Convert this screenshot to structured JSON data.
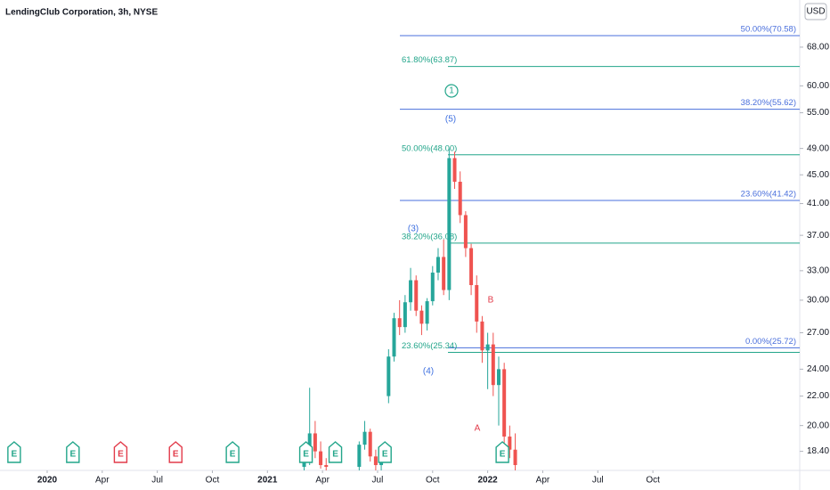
{
  "chart_data": {
    "type": "candlestick",
    "title": "LendingClub Corporation, 3h, NYSE",
    "currency": "USD",
    "log_scale": true,
    "up_color": "#26a69a",
    "down_color": "#ef5350",
    "xlim": [
      -2.57,
      41.0
    ],
    "xticks": [
      {
        "value": 0,
        "label": "2020"
      },
      {
        "value": 3,
        "label": "Apr"
      },
      {
        "value": 6,
        "label": "Jul"
      },
      {
        "value": 9,
        "label": "Oct"
      },
      {
        "value": 12,
        "label": "2021"
      },
      {
        "value": 15,
        "label": "Apr"
      },
      {
        "value": 18,
        "label": "Jul"
      },
      {
        "value": 21,
        "label": "Oct"
      },
      {
        "value": 24,
        "label": "2022"
      },
      {
        "value": 27,
        "label": "Apr"
      },
      {
        "value": 30,
        "label": "Jul"
      },
      {
        "value": 33,
        "label": "Oct"
      }
    ],
    "ylim": [
      17.3,
      79.2
    ],
    "yticks": [
      {
        "value": 18.4,
        "label": "18.40"
      },
      {
        "value": 20,
        "label": "20.00"
      },
      {
        "value": 22,
        "label": "22.00"
      },
      {
        "value": 24,
        "label": "24.00"
      },
      {
        "value": 27,
        "label": "27.00"
      },
      {
        "value": 30,
        "label": "30.00"
      },
      {
        "value": 33,
        "label": "33.00"
      },
      {
        "value": 37,
        "label": "37.00"
      },
      {
        "value": 41,
        "label": "41.00"
      },
      {
        "value": 45,
        "label": "45.00"
      },
      {
        "value": 49,
        "label": "49.00"
      },
      {
        "value": 55,
        "label": "55.00"
      },
      {
        "value": 60,
        "label": "60.00"
      },
      {
        "value": 68,
        "label": "68.00"
      }
    ],
    "candles": {
      "x": [
        14.0,
        14.3,
        14.6,
        14.9,
        15.2,
        17.0,
        17.3,
        17.6,
        17.9,
        18.2,
        18.6,
        18.9,
        19.2,
        19.5,
        19.8,
        20.1,
        20.4,
        20.7,
        21.0,
        21.3,
        21.6,
        21.9,
        22.2,
        22.5,
        22.8,
        23.1,
        23.4,
        23.7,
        24.0,
        24.3,
        24.6,
        24.9,
        25.2,
        25.5
      ],
      "open": [
        17.5,
        17.9,
        19.5,
        18.4,
        17.6,
        17.5,
        18.8,
        19.6,
        18.1,
        17.6,
        22.0,
        25.0,
        28.3,
        27.5,
        29.8,
        32.0,
        29.0,
        27.8,
        29.9,
        32.8,
        34.5,
        31.0,
        47.5,
        44.0,
        39.5,
        35.5,
        31.5,
        28.0,
        25.5,
        26.0,
        22.8,
        24.0,
        19.3,
        18.5
      ],
      "high": [
        18.2,
        22.6,
        20.3,
        19.0,
        18.0,
        19.0,
        20.3,
        19.8,
        18.5,
        18.0,
        25.6,
        28.8,
        30.0,
        30.5,
        33.3,
        32.5,
        29.5,
        30.2,
        33.5,
        35.5,
        36.5,
        49.0,
        48.5,
        45.5,
        40.0,
        36.0,
        32.5,
        28.5,
        27.0,
        27.0,
        25.0,
        24.5,
        20.0,
        19.5
      ],
      "low": [
        17.3,
        17.6,
        18.0,
        17.4,
        17.3,
        17.3,
        18.5,
        17.8,
        17.3,
        17.3,
        21.5,
        24.6,
        26.8,
        27.0,
        29.0,
        28.5,
        26.8,
        27.2,
        29.5,
        32.0,
        30.5,
        30.0,
        43.0,
        38.5,
        34.5,
        30.5,
        27.0,
        24.5,
        22.5,
        22.0,
        20.0,
        18.8,
        18.0,
        17.3
      ],
      "close": [
        17.9,
        19.5,
        18.4,
        17.6,
        17.5,
        18.8,
        19.6,
        18.1,
        17.6,
        17.8,
        25.0,
        28.3,
        27.5,
        29.8,
        32.0,
        29.0,
        27.8,
        29.9,
        32.8,
        34.5,
        31.0,
        47.5,
        44.0,
        39.5,
        35.5,
        31.5,
        28.0,
        25.5,
        26.0,
        22.8,
        24.0,
        19.3,
        18.5,
        17.6
      ]
    },
    "retracements": [
      {
        "color": "#4a6fdc",
        "levels": [
          {
            "value": 70.58,
            "label": "50.00%(70.58)"
          },
          {
            "value": 55.62,
            "label": "38.20%(55.62)"
          },
          {
            "value": 41.42,
            "label": "23.60%(41.42)"
          },
          {
            "value": 25.72,
            "label": "0.00%(25.72)"
          }
        ]
      },
      {
        "color": "#22a58a",
        "levels": [
          {
            "value": 63.87,
            "label": "61.80%(63.87)"
          },
          {
            "value": 48.0,
            "label": "50.00%(48.00)"
          },
          {
            "value": 36.08,
            "label": "38.20%(36.08)"
          },
          {
            "value": 25.34,
            "label": "23.60%(25.34)"
          }
        ]
      }
    ],
    "annotations": [
      {
        "text": "1",
        "color": "#22a58a"
      },
      {
        "text": "(5)",
        "color": "#3d6fe0"
      },
      {
        "text": "(3)",
        "color": "#3d6fe0"
      },
      {
        "text": "(4)",
        "color": "#3d6fe0"
      },
      {
        "text": "B",
        "color": "#e23b4a"
      },
      {
        "text": "A",
        "color": "#e23b4a"
      }
    ],
    "earnings": [
      {
        "x": -1.8,
        "label": "E",
        "color": "#22a58a"
      },
      {
        "x": 1.4,
        "label": "E",
        "color": "#22a58a"
      },
      {
        "x": 4.0,
        "label": "E",
        "color": "#e23b4a"
      },
      {
        "x": 7.0,
        "label": "E",
        "color": "#e23b4a"
      },
      {
        "x": 10.1,
        "label": "E",
        "color": "#22a58a"
      },
      {
        "x": 14.1,
        "label": "E",
        "color": "#22a58a"
      },
      {
        "x": 15.7,
        "label": "E",
        "color": "#22a58a"
      },
      {
        "x": 18.4,
        "label": "E",
        "color": "#22a58a"
      },
      {
        "x": 24.8,
        "label": "E",
        "color": "#22a58a"
      }
    ]
  }
}
